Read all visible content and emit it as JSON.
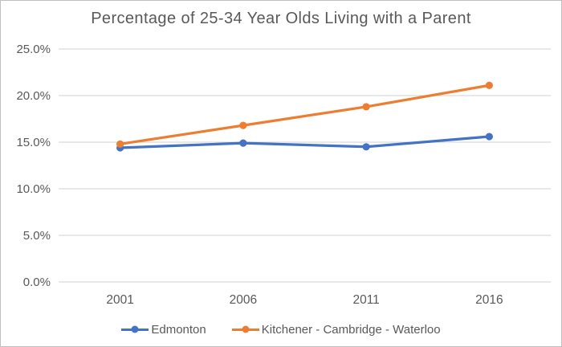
{
  "chart_data": {
    "type": "line",
    "title": "Percentage of 25-34 Year Olds Living with a Parent",
    "categories": [
      "2001",
      "2006",
      "2011",
      "2016"
    ],
    "series": [
      {
        "name": "Edmonton",
        "color": "#4472C4",
        "values": [
          14.4,
          14.9,
          14.5,
          15.6
        ]
      },
      {
        "name": "Kitchener - Cambridge - Waterloo",
        "color": "#ED7D31",
        "values": [
          14.8,
          16.8,
          18.8,
          21.1
        ]
      }
    ],
    "xlabel": "",
    "ylabel": "",
    "ylim": [
      0,
      25
    ],
    "ytick_step": 5,
    "ytick_labels": [
      "0.0%",
      "5.0%",
      "10.0%",
      "15.0%",
      "20.0%",
      "25.0%"
    ],
    "grid": true,
    "legend_position": "bottom"
  },
  "colors": {
    "title_text": "#595959",
    "axis_text": "#595959",
    "gridline": "#D9D9D9",
    "border": "#BFBFBF",
    "background": "#FFFFFF"
  }
}
